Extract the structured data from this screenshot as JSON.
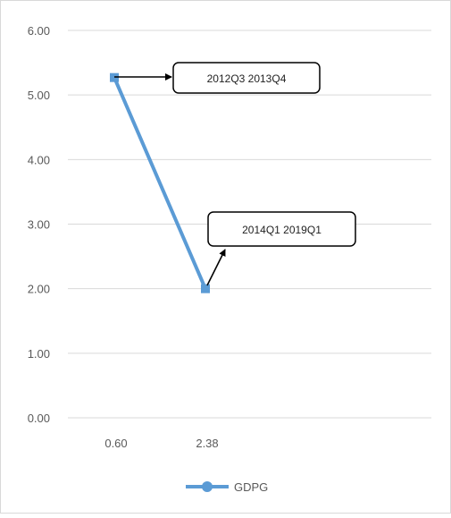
{
  "chart_data": {
    "type": "line",
    "title": "",
    "xlabel": "",
    "ylabel": "",
    "categories": [
      "0.60",
      "2.38"
    ],
    "y_ticks": [
      "0.00",
      "1.00",
      "2.00",
      "3.00",
      "4.00",
      "5.00",
      "6.00"
    ],
    "ylim": [
      0,
      6
    ],
    "grid": true,
    "legend_position": "bottom",
    "series": [
      {
        "name": "GDPG",
        "values": [
          5.27,
          2.0
        ],
        "color": "#5b9bd5"
      }
    ],
    "annotations": [
      {
        "text": "2012Q3 2013Q4",
        "point_index": 0
      },
      {
        "text": "2014Q1 2019Q1",
        "point_index": 1
      }
    ]
  }
}
